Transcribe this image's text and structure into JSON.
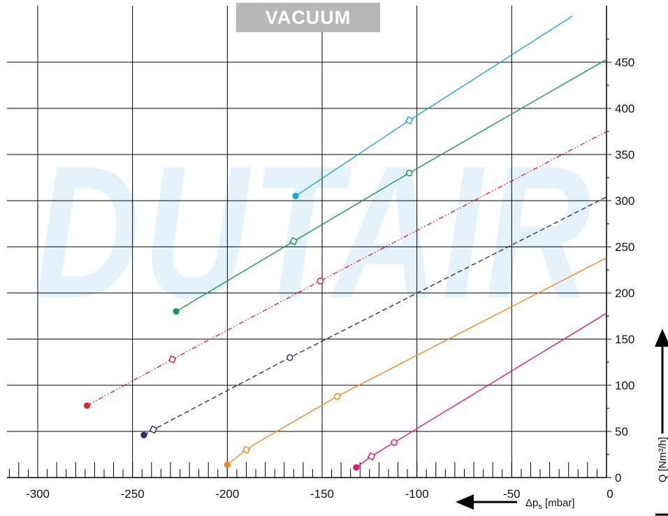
{
  "header": {
    "badge": "VACUUM"
  },
  "watermark": "DUTAIR",
  "chart_data": {
    "type": "line",
    "title": "VACUUM",
    "xlabel": "Δps [mbar]",
    "xlabel_parts": {
      "base": "Δp",
      "sub": "s",
      "unit": " [mbar]"
    },
    "ylabel": "Q [Nm³/h]",
    "xlim": [
      -320,
      0
    ],
    "ylim": [
      0,
      500
    ],
    "x_ticks": [
      -300,
      -250,
      -200,
      -150,
      -100,
      -50,
      0
    ],
    "y_ticks": [
      0,
      50,
      100,
      150,
      200,
      250,
      300,
      350,
      400,
      450
    ],
    "grid": true,
    "series": [
      {
        "color": "#1aa6dc",
        "style": "solid",
        "x": [
          -164,
          -104,
          -18
        ],
        "y": [
          305,
          387,
          500
        ],
        "markers": [
          {
            "x": -164,
            "y": 305,
            "shape": "dot"
          },
          {
            "x": -104,
            "y": 387,
            "shape": "diamond"
          }
        ]
      },
      {
        "color": "#169b4a",
        "style": "solid",
        "x": [
          -227,
          -165,
          -104,
          0
        ],
        "y": [
          180,
          256,
          330,
          453
        ],
        "markers": [
          {
            "x": -227,
            "y": 180,
            "shape": "dot"
          },
          {
            "x": -165,
            "y": 256,
            "shape": "diamond"
          },
          {
            "x": -104,
            "y": 330,
            "shape": "circle"
          }
        ]
      },
      {
        "color": "#e0262b",
        "style": "dashdotdot",
        "x": [
          -274,
          -229,
          -151,
          0
        ],
        "y": [
          78,
          128,
          213,
          375
        ],
        "markers": [
          {
            "x": -274,
            "y": 78,
            "shape": "dot"
          },
          {
            "x": -229,
            "y": 128,
            "shape": "diamond"
          },
          {
            "x": -151,
            "y": 213,
            "shape": "circle"
          }
        ]
      },
      {
        "color": "#2e2a7e",
        "style": "dashed",
        "x": [
          -244,
          -239,
          -167,
          0
        ],
        "y": [
          46,
          52,
          130,
          304
        ],
        "markers": [
          {
            "x": -244,
            "y": 46,
            "shape": "dot"
          },
          {
            "x": -239,
            "y": 52,
            "shape": "diamond"
          },
          {
            "x": -167,
            "y": 130,
            "shape": "circle"
          }
        ]
      },
      {
        "color": "#f08a1c",
        "style": "solid",
        "x": [
          -200,
          -190,
          -184,
          -142,
          0
        ],
        "y": [
          14,
          30,
          38,
          88,
          238
        ],
        "markers": [
          {
            "x": -200,
            "y": 14,
            "shape": "dot"
          },
          {
            "x": -190,
            "y": 30,
            "shape": "diamond"
          },
          {
            "x": -142,
            "y": 88,
            "shape": "circle"
          }
        ]
      },
      {
        "color": "#e0177a",
        "style": "solid",
        "x": [
          -132,
          -124,
          -112,
          0
        ],
        "y": [
          11,
          23,
          38,
          178
        ],
        "markers": [
          {
            "x": -132,
            "y": 11,
            "shape": "dot"
          },
          {
            "x": -124,
            "y": 23,
            "shape": "diamond"
          },
          {
            "x": -112,
            "y": 38,
            "shape": "circle"
          }
        ]
      }
    ]
  }
}
